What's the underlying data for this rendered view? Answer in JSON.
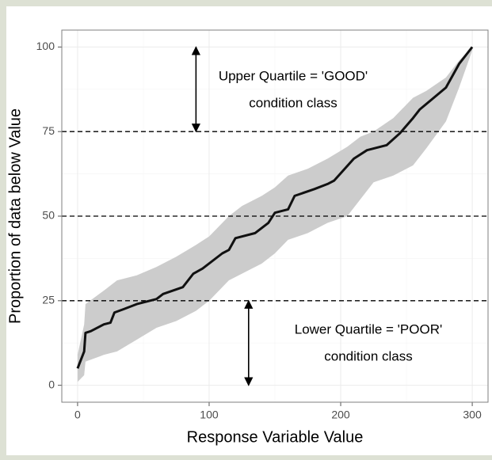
{
  "chart_data": {
    "type": "line",
    "x_label": "Response Variable Value",
    "y_label": "Proportion of data below Value",
    "xlim": [
      -12,
      312
    ],
    "ylim": [
      -5,
      105
    ],
    "xticks": [
      0,
      100,
      200,
      300
    ],
    "yticks": [
      0,
      25,
      50,
      75,
      100
    ],
    "grid": true,
    "series": [
      {
        "color": "#111111",
        "x": [
          0,
          3,
          5,
          6,
          10,
          20,
          25,
          28,
          35,
          45,
          60,
          65,
          80,
          88,
          95,
          110,
          115,
          120,
          135,
          145,
          150,
          160,
          165,
          180,
          190,
          195,
          210,
          220,
          235,
          245,
          255,
          260,
          280,
          290,
          300
        ],
        "values": [
          5,
          8,
          10,
          15.5,
          16,
          18,
          18.5,
          21.5,
          22.5,
          24,
          25.5,
          27,
          29,
          33,
          34.5,
          39,
          40,
          43.5,
          45,
          48,
          51,
          52,
          56,
          58,
          59.5,
          60.5,
          67,
          69.5,
          71,
          74.5,
          79,
          81.5,
          88,
          95,
          100
        ]
      }
    ],
    "ribbon": {
      "color": "#cccccc",
      "x": [
        0,
        5,
        6,
        20,
        30,
        45,
        60,
        75,
        90,
        100,
        115,
        125,
        140,
        150,
        160,
        175,
        190,
        205,
        215,
        225,
        240,
        255,
        265,
        280,
        290,
        300
      ],
      "lower": [
        1,
        3,
        7,
        9,
        10,
        13.5,
        17,
        19,
        22,
        25,
        31,
        33,
        36,
        39,
        43,
        45,
        48,
        50,
        55,
        60,
        62,
        65,
        70,
        78,
        88,
        99
      ],
      "upper": [
        9,
        18,
        24,
        28,
        31,
        32.5,
        35,
        38,
        41.5,
        44,
        50,
        53,
        56,
        58.5,
        62,
        64,
        67,
        70.5,
        73.5,
        75,
        79,
        85,
        87,
        91,
        96,
        100
      ]
    },
    "hlines": [
      25,
      50,
      75
    ],
    "arrows": [
      {
        "x": 90,
        "from": 100,
        "to": 75
      },
      {
        "x": 130,
        "from": 25,
        "to": 0
      }
    ],
    "annotations": [
      {
        "lines": [
          "Upper Quartile = 'GOOD'",
          "condition class"
        ]
      },
      {
        "lines": [
          "Lower Quartile = 'POOR'",
          "condition class"
        ]
      }
    ]
  }
}
